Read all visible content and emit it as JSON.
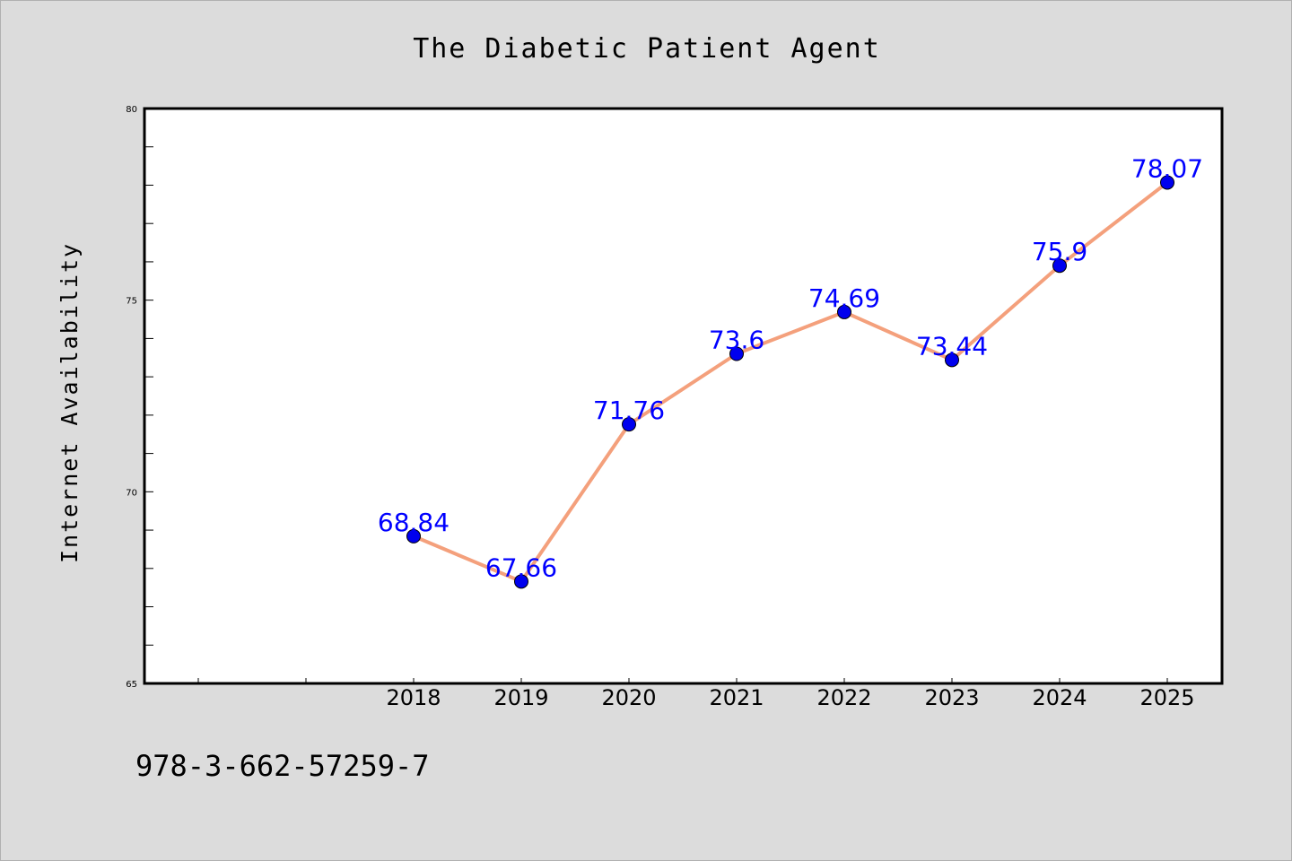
{
  "chart_data": {
    "type": "line",
    "title": "The Diabetic Patient Agent",
    "xlabel": "",
    "ylabel": "Internet Availability",
    "categories": [
      "2018",
      "2019",
      "2020",
      "2021",
      "2022",
      "2023",
      "2024",
      "2025"
    ],
    "values": [
      68.84,
      67.66,
      71.76,
      73.6,
      74.69,
      73.44,
      75.9,
      78.07
    ],
    "data_labels": [
      "68.84",
      "67.66",
      "71.76",
      "73.6",
      "74.69",
      "73.44",
      "75.9",
      "78.07"
    ],
    "ylim": [
      65,
      80
    ],
    "y_ticks": [
      "65",
      "70",
      "75",
      "80"
    ],
    "grid": false,
    "legend": "none",
    "colors": {
      "line": "#f4a07c",
      "marker": "#0000ee",
      "label": "#0000ff",
      "background": "#dcdcdc",
      "plot_background": "#ffffff"
    }
  },
  "footer": {
    "isbn": "978-3-662-57259-7"
  }
}
